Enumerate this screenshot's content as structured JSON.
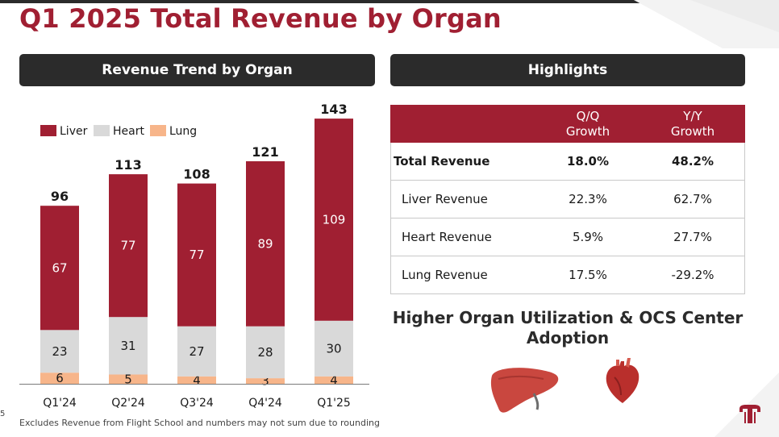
{
  "page": {
    "title": "Q1 2025 Total Revenue by Organ",
    "left_banner": "Revenue Trend by Organ",
    "right_banner": "Highlights",
    "footnote": "Excludes Revenue from Flight School and numbers may not sum due to rounding",
    "page_number": "5",
    "headline_line1": "Higher Organ Utilization & OCS Center",
    "headline_line2": "Adoption"
  },
  "colors": {
    "accent": "#a01f32",
    "banner": "#2b2b2b",
    "liver": "#a01f32",
    "heart": "#d9d9d9",
    "lung": "#f7b58a"
  },
  "chart_data": {
    "type": "bar",
    "stacked": true,
    "categories": [
      "Q1'24",
      "Q2'24",
      "Q3'24",
      "Q4'24",
      "Q1'25"
    ],
    "series": [
      {
        "name": "Liver",
        "values": [
          67,
          77,
          77,
          89,
          109
        ],
        "color": "#a01f32"
      },
      {
        "name": "Heart",
        "values": [
          23,
          31,
          27,
          28,
          30
        ],
        "color": "#d9d9d9"
      },
      {
        "name": "Lung",
        "values": [
          6,
          5,
          4,
          3,
          4
        ],
        "color": "#f7b58a"
      }
    ],
    "totals": [
      96,
      113,
      108,
      121,
      143
    ],
    "legend_position": "top-left",
    "ylim": [
      0,
      150
    ]
  },
  "highlights": {
    "headers": [
      "",
      "Q/Q\nGrowth",
      "Y/Y\nGrowth"
    ],
    "rows": [
      {
        "label": "Total Revenue",
        "qq": "18.0%",
        "yy": "48.2%",
        "bold": true
      },
      {
        "label": "Liver Revenue",
        "qq": "22.3%",
        "yy": "62.7%",
        "bold": false
      },
      {
        "label": "Heart Revenue",
        "qq": "5.9%",
        "yy": "27.7%",
        "bold": false
      },
      {
        "label": "Lung Revenue",
        "qq": "17.5%",
        "yy": "-29.2%",
        "bold": false
      }
    ]
  },
  "icons": {
    "liver": "liver-icon",
    "heart": "heart-icon",
    "logo": "company-logo-icon"
  }
}
